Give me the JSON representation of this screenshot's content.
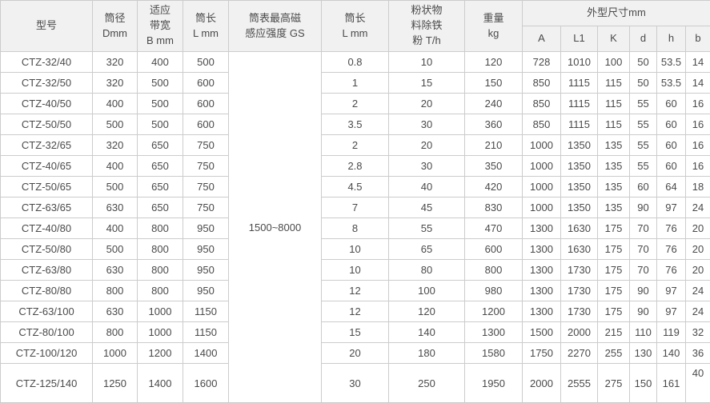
{
  "colors": {
    "border": "#cccccc",
    "header_bg": "#f1f1f1",
    "text": "#4a4a4a",
    "body_bg": "#ffffff"
  },
  "table": {
    "headers": {
      "model": "型号",
      "diameter": [
        "筒径",
        "Dmm"
      ],
      "bandwidth": [
        "适应",
        "带宽",
        "B mm"
      ],
      "length": [
        "筒长",
        "L mm"
      ],
      "gs": [
        "筒表最高磁",
        "感应强度 GS"
      ],
      "length2": [
        "筒长",
        "L mm"
      ],
      "powder": [
        "粉状物",
        "料除铁",
        "粉 T/h"
      ],
      "weight": [
        "重量",
        "kg"
      ],
      "dims": "外型尺寸mm",
      "dim_cols": [
        "A",
        "L1",
        "K",
        "d",
        "h",
        "b"
      ]
    },
    "gs_value": "1500~8000",
    "rows": [
      [
        "CTZ-32/40",
        "320",
        "400",
        "500",
        "0.8",
        "10",
        "120",
        "728",
        "1010",
        "100",
        "50",
        "53.5",
        "14"
      ],
      [
        "CTZ-32/50",
        "320",
        "500",
        "600",
        "1",
        "15",
        "150",
        "850",
        "1115",
        "115",
        "50",
        "53.5",
        "14"
      ],
      [
        "CTZ-40/50",
        "400",
        "500",
        "600",
        "2",
        "20",
        "240",
        "850",
        "1115",
        "115",
        "55",
        "60",
        "16"
      ],
      [
        "CTZ-50/50",
        "500",
        "500",
        "600",
        "3.5",
        "30",
        "360",
        "850",
        "1115",
        "115",
        "55",
        "60",
        "16"
      ],
      [
        "CTZ-32/65",
        "320",
        "650",
        "750",
        "2",
        "20",
        "210",
        "1000",
        "1350",
        "135",
        "55",
        "60",
        "16"
      ],
      [
        "CTZ-40/65",
        "400",
        "650",
        "750",
        "2.8",
        "30",
        "350",
        "1000",
        "1350",
        "135",
        "55",
        "60",
        "16"
      ],
      [
        "CTZ-50/65",
        "500",
        "650",
        "750",
        "4.5",
        "40",
        "420",
        "1000",
        "1350",
        "135",
        "60",
        "64",
        "18"
      ],
      [
        "CTZ-63/65",
        "630",
        "650",
        "750",
        "7",
        "45",
        "830",
        "1000",
        "1350",
        "135",
        "90",
        "97",
        "24"
      ],
      [
        "CTZ-40/80",
        "400",
        "800",
        "950",
        "8",
        "55",
        "470",
        "1300",
        "1630",
        "175",
        "70",
        "76",
        "20"
      ],
      [
        "CTZ-50/80",
        "500",
        "800",
        "950",
        "10",
        "65",
        "600",
        "1300",
        "1630",
        "175",
        "70",
        "76",
        "20"
      ],
      [
        "CTZ-63/80",
        "630",
        "800",
        "950",
        "10",
        "80",
        "800",
        "1300",
        "1730",
        "175",
        "70",
        "76",
        "20"
      ],
      [
        "CTZ-80/80",
        "800",
        "800",
        "950",
        "12",
        "100",
        "980",
        "1300",
        "1730",
        "175",
        "90",
        "97",
        "24"
      ],
      [
        "CTZ-63/100",
        "630",
        "1000",
        "1150",
        "12",
        "120",
        "1200",
        "1300",
        "1730",
        "175",
        "90",
        "97",
        "24"
      ],
      [
        "CTZ-80/100",
        "800",
        "1000",
        "1150",
        "15",
        "140",
        "1300",
        "1500",
        "2000",
        "215",
        "110",
        "119",
        "32"
      ],
      [
        "CTZ-100/120",
        "1000",
        "1200",
        "1400",
        "20",
        "180",
        "1580",
        "1750",
        "2270",
        "255",
        "130",
        "140",
        "36"
      ],
      [
        "CTZ-125/140",
        "1250",
        "1400",
        "1600",
        "30",
        "250",
        "1950",
        "2000",
        "2555",
        "275",
        "150",
        "161",
        "40"
      ]
    ]
  }
}
